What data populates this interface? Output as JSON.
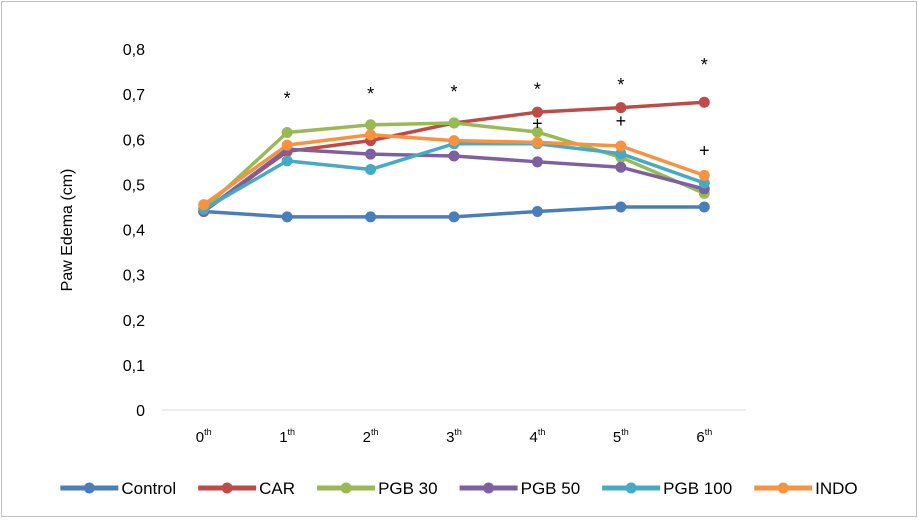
{
  "chart_data": {
    "type": "line",
    "title": "",
    "xlabel": "",
    "ylabel": "Paw Edema (cm)",
    "ylim": [
      0,
      0.8
    ],
    "yticks": [
      "0",
      "0,1",
      "0,2",
      "0,3",
      "0,4",
      "0,5",
      "0,6",
      "0,7",
      "0,8"
    ],
    "categories": [
      {
        "base": "0",
        "sup": "th"
      },
      {
        "base": "1",
        "sup": "th"
      },
      {
        "base": "2",
        "sup": "th"
      },
      {
        "base": "3",
        "sup": "th"
      },
      {
        "base": "4",
        "sup": "th"
      },
      {
        "base": "5",
        "sup": "th"
      },
      {
        "base": "6",
        "sup": "th"
      }
    ],
    "series": [
      {
        "name": "Control",
        "color": "#4a7ebb",
        "values": [
          0.44,
          0.428,
          0.428,
          0.428,
          0.44,
          0.45,
          0.45
        ]
      },
      {
        "name": "CAR",
        "color": "#be4b48",
        "values": [
          0.44,
          0.573,
          0.597,
          0.636,
          0.66,
          0.67,
          0.682
        ]
      },
      {
        "name": "PGB 30",
        "color": "#98b954",
        "values": [
          0.445,
          0.615,
          0.632,
          0.636,
          0.616,
          0.56,
          0.48
        ]
      },
      {
        "name": "PGB 50",
        "color": "#7d60a0",
        "values": [
          0.44,
          0.578,
          0.567,
          0.563,
          0.55,
          0.538,
          0.49
        ]
      },
      {
        "name": "PGB 100",
        "color": "#46aac5",
        "values": [
          0.445,
          0.552,
          0.533,
          0.59,
          0.59,
          0.568,
          0.503
        ]
      },
      {
        "name": "INDO",
        "color": "#f69240",
        "values": [
          0.455,
          0.587,
          0.61,
          0.597,
          0.593,
          0.585,
          0.52
        ]
      }
    ],
    "annotations": [
      {
        "text": "*",
        "x": 1,
        "y": 0.69
      },
      {
        "text": "*",
        "x": 2,
        "y": 0.7
      },
      {
        "text": "*",
        "x": 3,
        "y": 0.705
      },
      {
        "text": "*",
        "x": 4,
        "y": 0.71
      },
      {
        "text": "*",
        "x": 5,
        "y": 0.72
      },
      {
        "text": "*",
        "x": 6,
        "y": 0.765
      },
      {
        "text": "+",
        "x": 4,
        "y": 0.635
      },
      {
        "text": "+",
        "x": 5,
        "y": 0.64
      },
      {
        "text": "+",
        "x": 6,
        "y": 0.575
      }
    ],
    "grid": false,
    "legend": "bottom"
  }
}
